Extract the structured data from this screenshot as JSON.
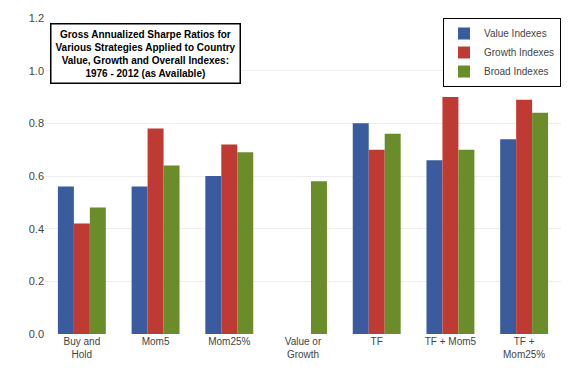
{
  "chart_data": {
    "type": "bar",
    "title": "Gross Annualized Sharpe Ratios for\nVarious Strategies Applied to Country\nValue, Growth and Overall Indexes:\n1976 - 2012 (as Available)",
    "categories": [
      "Buy and\nHold",
      "Mom5",
      "Mom25%",
      "Value or\nGrowth",
      "TF",
      "TF + Mom5",
      "TF +\nMom25%"
    ],
    "series": [
      {
        "name": "Value Indexes",
        "color": "#3A5B9E",
        "values": [
          0.56,
          0.56,
          0.6,
          0.0,
          0.8,
          0.66,
          0.74
        ]
      },
      {
        "name": "Growth Indexes",
        "color": "#BE3A33",
        "values": [
          0.42,
          0.78,
          0.72,
          0.0,
          0.7,
          0.9,
          0.89
        ]
      },
      {
        "name": "Broad Indexes",
        "color": "#6B8C2A",
        "values": [
          0.48,
          0.64,
          0.69,
          0.58,
          0.76,
          0.7,
          0.84
        ]
      }
    ],
    "ylim": [
      0.0,
      1.2
    ],
    "yticks": [
      {
        "value": 0.0,
        "label": "0.0"
      },
      0.2,
      0.4,
      0.6,
      0.8,
      {
        "value": 1.0,
        "label": "1.0"
      },
      1.2
    ],
    "grid": true,
    "legend": "upper right"
  }
}
